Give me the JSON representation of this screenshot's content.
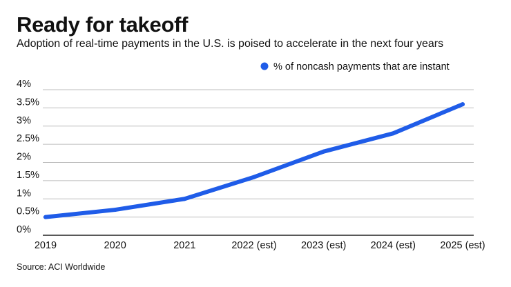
{
  "title": "Ready for takeoff",
  "subtitle": "Adoption of real-time payments in the U.S. is poised to accelerate in the next four years",
  "source": "Source: ACI Worldwide",
  "colors": {
    "series": "#1f5ce8",
    "grid": "#bdbdbd",
    "axis": "#222222",
    "text": "#111111"
  },
  "chart_data": {
    "type": "line",
    "title": "Ready for takeoff",
    "subtitle": "Adoption of real-time payments in the U.S. is poised to accelerate in the next four years",
    "categories": [
      "2019",
      "2020",
      "2021",
      "2022 (est)",
      "2023 (est)",
      "2024 (est)",
      "2025 (est)"
    ],
    "series": [
      {
        "name": "% of noncash payments that are instant",
        "values": [
          0.5,
          0.7,
          1.0,
          1.6,
          2.3,
          2.8,
          3.6
        ]
      }
    ],
    "ylim": [
      0,
      4
    ],
    "yticks": [
      0,
      0.5,
      1,
      1.5,
      2,
      2.5,
      3,
      3.5,
      4
    ],
    "ytick_labels": [
      "0%",
      "0.5%",
      "1%",
      "1.5%",
      "2%",
      "2.5%",
      "3%",
      "3.5%",
      "4%"
    ],
    "xlabel": "",
    "ylabel": "",
    "legend": "top-right",
    "grid": true
  }
}
